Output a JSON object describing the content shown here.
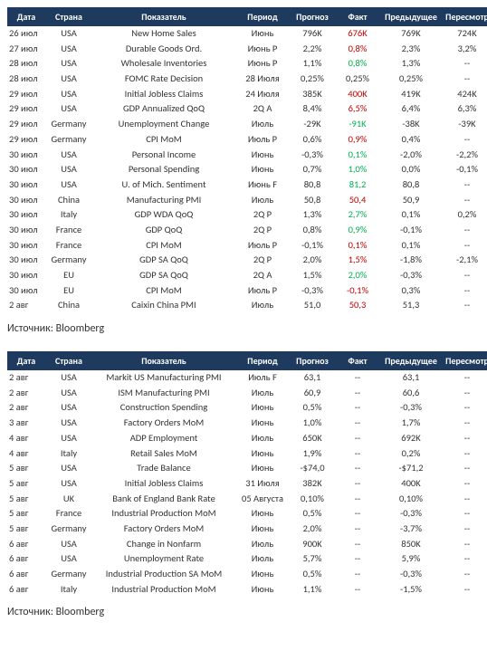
{
  "colors": {
    "header_bg": "#1f3a5f",
    "header_fg": "#ffffff",
    "text": "#333333",
    "up": "#c00000",
    "down": "#00b050",
    "neutral": "#333333"
  },
  "columns": [
    {
      "key": "date",
      "label": "Дата"
    },
    {
      "key": "country",
      "label": "Страна"
    },
    {
      "key": "indicator",
      "label": "Показатель"
    },
    {
      "key": "period",
      "label": "Период"
    },
    {
      "key": "forecast",
      "label": "Прогноз"
    },
    {
      "key": "fact",
      "label": "Факт"
    },
    {
      "key": "prev",
      "label": "Предыдущее"
    },
    {
      "key": "revision",
      "label": "Пересмотр"
    }
  ],
  "source_label": "Источник: Bloomberg",
  "table1": [
    {
      "date": "26 июл",
      "country": "USA",
      "indicator": "New Home Sales",
      "period": "Июнь",
      "forecast": "796K",
      "fact": "676K",
      "fact_c": "up",
      "prev": "769K",
      "revision": "724K"
    },
    {
      "date": "27 июл",
      "country": "USA",
      "indicator": "Durable Goods Ord.",
      "period": "Июнь P",
      "forecast": "2,2%",
      "fact": "0,8%",
      "fact_c": "up",
      "prev": "2,3%",
      "revision": "3,2%"
    },
    {
      "date": "28 июл",
      "country": "USA",
      "indicator": "Wholesale Inventories",
      "period": "Июнь P",
      "forecast": "1,1%",
      "fact": "0,8%",
      "fact_c": "down",
      "prev": "1,3%",
      "revision": "--"
    },
    {
      "date": "28 июл",
      "country": "USA",
      "indicator": "FOMC Rate Decision",
      "period": "28 Июля",
      "forecast": "0,25%",
      "fact": "0,25%",
      "fact_c": "neutral",
      "prev": "0,25%",
      "revision": "--"
    },
    {
      "date": "29 июл",
      "country": "USA",
      "indicator": "Initial Jobless Claims",
      "period": "24 Июля",
      "forecast": "385K",
      "fact": "400K",
      "fact_c": "up",
      "prev": "419K",
      "revision": "424K"
    },
    {
      "date": "29 июл",
      "country": "USA",
      "indicator": "GDP Annualized QoQ",
      "period": "2Q A",
      "forecast": "8,4%",
      "fact": "6,5%",
      "fact_c": "up",
      "prev": "6,4%",
      "revision": "6,3%"
    },
    {
      "date": "29 июл",
      "country": "Germany",
      "indicator": "Unemployment Change",
      "period": "Июль",
      "forecast": "-29K",
      "fact": "-91K",
      "fact_c": "down",
      "prev": "-38K",
      "revision": "-39K"
    },
    {
      "date": "29 июл",
      "country": "Germany",
      "indicator": "CPI MoM",
      "period": "Июль P",
      "forecast": "0,6%",
      "fact": "0,9%",
      "fact_c": "up",
      "prev": "0,4%",
      "revision": "--"
    },
    {
      "date": "30 июл",
      "country": "USA",
      "indicator": "Personal Income",
      "period": "Июнь",
      "forecast": "-0,3%",
      "fact": "0,1%",
      "fact_c": "down",
      "prev": "-2,0%",
      "revision": "-2,2%"
    },
    {
      "date": "30 июл",
      "country": "USA",
      "indicator": "Personal Spending",
      "period": "Июнь",
      "forecast": "0,7%",
      "fact": "1,0%",
      "fact_c": "down",
      "prev": "0,0%",
      "revision": "-0,1%"
    },
    {
      "date": "30 июл",
      "country": "USA",
      "indicator": "U. of Mich. Sentiment",
      "period": "Июнь F",
      "forecast": "80,8",
      "fact": "81,2",
      "fact_c": "down",
      "prev": "80,8",
      "revision": "--"
    },
    {
      "date": "30 июл",
      "country": "China",
      "indicator": "Manufacturing PMI",
      "period": "Июль",
      "forecast": "50,8",
      "fact": "50,4",
      "fact_c": "up",
      "prev": "50,9",
      "revision": "--"
    },
    {
      "date": "30 июл",
      "country": "Italy",
      "indicator": "GDP WDA QoQ",
      "period": "2Q P",
      "forecast": "1,3%",
      "fact": "2,7%",
      "fact_c": "down",
      "prev": "0,1%",
      "revision": "0,2%"
    },
    {
      "date": "30 июл",
      "country": "France",
      "indicator": "GDP QoQ",
      "period": "2Q P",
      "forecast": "0,8%",
      "fact": "0,9%",
      "fact_c": "down",
      "prev": "-0,1%",
      "revision": "--"
    },
    {
      "date": "30 июл",
      "country": "France",
      "indicator": "CPI MoM",
      "period": "Июль P",
      "forecast": "-0,1%",
      "fact": "0,1%",
      "fact_c": "up",
      "prev": "0,1%",
      "revision": "--"
    },
    {
      "date": "30 июл",
      "country": "Germany",
      "indicator": "GDP SA QoQ",
      "period": "2Q P",
      "forecast": "2,0%",
      "fact": "1,5%",
      "fact_c": "up",
      "prev": "-1,8%",
      "revision": "-2,1%"
    },
    {
      "date": "30 июл",
      "country": "EU",
      "indicator": "GDP SA QoQ",
      "period": "2Q A",
      "forecast": "1,5%",
      "fact": "2,0%",
      "fact_c": "down",
      "prev": "-0,3%",
      "revision": "--"
    },
    {
      "date": "30 июл",
      "country": "EU",
      "indicator": "CPI MoM",
      "period": "Июль P",
      "forecast": "-0,3%",
      "fact": "-0,1%",
      "fact_c": "up",
      "prev": "0,3%",
      "revision": "--"
    },
    {
      "date": "2 авг",
      "country": "China",
      "indicator": "Caixin China PMI",
      "period": "Июль",
      "forecast": "51,0",
      "fact": "50,3",
      "fact_c": "up",
      "prev": "51,3",
      "revision": "--"
    }
  ],
  "table2": [
    {
      "date": "2 авг",
      "country": "USA",
      "indicator": "Markit US Manufacturing PMI",
      "period": "Июль F",
      "forecast": "63,1",
      "fact": "--",
      "prev": "63,1",
      "revision": "--"
    },
    {
      "date": "2 авг",
      "country": "USA",
      "indicator": "ISM Manufacturing PMI",
      "period": "Июль",
      "forecast": "60,9",
      "fact": "--",
      "prev": "60,6",
      "revision": "--"
    },
    {
      "date": "2 авг",
      "country": "USA",
      "indicator": "Construction Spending",
      "period": "Июнь",
      "forecast": "0,5%",
      "fact": "--",
      "prev": "-0,3%",
      "revision": "--"
    },
    {
      "date": "3 авг",
      "country": "USA",
      "indicator": "Factory Orders MoM",
      "period": "Июнь",
      "forecast": "1,0%",
      "fact": "--",
      "prev": "1,7%",
      "revision": "--"
    },
    {
      "date": "4 авг",
      "country": "USA",
      "indicator": "ADP Employment",
      "period": "Июль",
      "forecast": "650K",
      "fact": "--",
      "prev": "692K",
      "revision": "--"
    },
    {
      "date": "4 авг",
      "country": "Italy",
      "indicator": "Retail Sales MoM",
      "period": "Июнь",
      "forecast": "1,9%",
      "fact": "--",
      "prev": "0,2%",
      "revision": "--"
    },
    {
      "date": "5 авг",
      "country": "USA",
      "indicator": "Trade Balance",
      "period": "Июнь",
      "forecast": "-$74,0",
      "fact": "--",
      "prev": "-$71,2",
      "revision": "--"
    },
    {
      "date": "5 авг",
      "country": "USA",
      "indicator": "Initial Jobless Claims",
      "period": "31 Июля",
      "forecast": "382K",
      "fact": "--",
      "prev": "400K",
      "revision": "--"
    },
    {
      "date": "5 авг",
      "country": "UK",
      "indicator": "Bank of England Bank Rate",
      "period": "05 Августа",
      "forecast": "0,10%",
      "fact": "--",
      "prev": "0,10%",
      "revision": "--"
    },
    {
      "date": "5 авг",
      "country": "France",
      "indicator": "Industrial Production MoM",
      "period": "Июнь",
      "forecast": "0,5%",
      "fact": "--",
      "prev": "-0,3%",
      "revision": "--"
    },
    {
      "date": "5 авг",
      "country": "Germany",
      "indicator": "Factory Orders MoM",
      "period": "Июнь",
      "forecast": "2,0%",
      "fact": "--",
      "prev": "-3,7%",
      "revision": "--"
    },
    {
      "date": "6 авг",
      "country": "USA",
      "indicator": "Change in Nonfarm",
      "period": "Июль",
      "forecast": "900K",
      "fact": "--",
      "prev": "850K",
      "revision": "--"
    },
    {
      "date": "6 авг",
      "country": "USA",
      "indicator": "Unemployment Rate",
      "period": "Июль",
      "forecast": "5,7%",
      "fact": "--",
      "prev": "5,9%",
      "revision": "--"
    },
    {
      "date": "6 авг",
      "country": "Germany",
      "indicator": "Industrial Production SA MoM",
      "period": "Июнь",
      "forecast": "0,5%",
      "fact": "--",
      "prev": "-0,3%",
      "revision": "--"
    },
    {
      "date": "6 авг",
      "country": "Italy",
      "indicator": "Industrial Production MoM",
      "period": "Июнь",
      "forecast": "1,1%",
      "fact": "--",
      "prev": "-1,5%",
      "revision": "--"
    }
  ]
}
